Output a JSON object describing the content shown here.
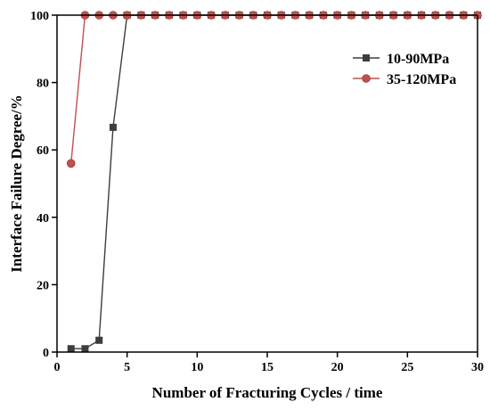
{
  "chart_data": {
    "type": "line",
    "xlabel": "Number of Fracturing Cycles / time",
    "ylabel": "Interface Failure Degree/%",
    "xlim": [
      0,
      30
    ],
    "ylim": [
      0,
      100
    ],
    "xticks": [
      0,
      5,
      10,
      15,
      20,
      25,
      30
    ],
    "yticks": [
      0,
      20,
      40,
      60,
      80,
      100
    ],
    "legend_position": "top-right",
    "grid": false,
    "series": [
      {
        "name": "10-90MPa",
        "marker": "square",
        "color": "#3d3d3d",
        "x": [
          1,
          2,
          3,
          4,
          5,
          6,
          7,
          8,
          9,
          10,
          11,
          12,
          13,
          14,
          15,
          16,
          17,
          18,
          19,
          20,
          21,
          22,
          23,
          24,
          25,
          26,
          27,
          28,
          29,
          30
        ],
        "y": [
          1,
          1,
          3.5,
          66.7,
          100,
          100,
          100,
          100,
          100,
          100,
          100,
          100,
          100,
          100,
          100,
          100,
          100,
          100,
          100,
          100,
          100,
          100,
          100,
          100,
          100,
          100,
          100,
          100,
          100,
          100
        ]
      },
      {
        "name": "35-120MPa",
        "marker": "circle",
        "color": "#c0504d",
        "x": [
          1,
          2,
          3,
          4,
          5,
          6,
          7,
          8,
          9,
          10,
          11,
          12,
          13,
          14,
          15,
          16,
          17,
          18,
          19,
          20,
          21,
          22,
          23,
          24,
          25,
          26,
          27,
          28,
          29,
          30
        ],
        "y": [
          56,
          100,
          100,
          100,
          100,
          100,
          100,
          100,
          100,
          100,
          100,
          100,
          100,
          100,
          100,
          100,
          100,
          100,
          100,
          100,
          100,
          100,
          100,
          100,
          100,
          100,
          100,
          100,
          100,
          100
        ]
      }
    ]
  }
}
